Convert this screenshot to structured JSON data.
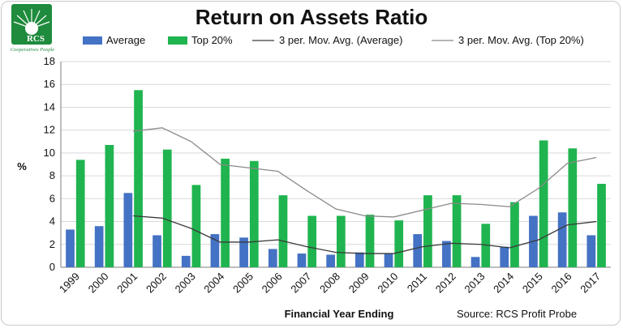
{
  "logo": {
    "text": "RCS",
    "tagline": "Cooperatives People"
  },
  "chart_data": {
    "type": "bar",
    "title": "Return on Assets Ratio",
    "xlabel": "Financial Year Ending",
    "ylabel": "%",
    "source": "Source: RCS Profit Probe",
    "ylim": [
      0,
      18
    ],
    "yticks": [
      "0",
      "2",
      "4",
      "6",
      "8",
      "10",
      "12",
      "14",
      "16",
      "18"
    ],
    "grid": true,
    "legend_position": "top",
    "categories": [
      "1999",
      "2000",
      "2001",
      "2002",
      "2003",
      "2004",
      "2005",
      "2006",
      "2007",
      "2008",
      "2009",
      "2010",
      "2011",
      "2012",
      "2013",
      "2014",
      "2015",
      "2016",
      "2017"
    ],
    "series": [
      {
        "name": "Average",
        "kind": "bar",
        "color": "#4472c4",
        "values": [
          3.3,
          3.6,
          6.5,
          2.8,
          1.0,
          2.9,
          2.6,
          1.6,
          1.2,
          1.1,
          1.3,
          1.2,
          2.9,
          2.3,
          0.9,
          1.8,
          4.5,
          4.8,
          2.8
        ]
      },
      {
        "name": "Top 20%",
        "kind": "bar",
        "color": "#1fb44f",
        "values": [
          9.4,
          10.7,
          15.5,
          10.3,
          7.2,
          9.5,
          9.3,
          6.3,
          4.5,
          4.5,
          4.6,
          4.1,
          6.3,
          6.3,
          3.8,
          5.7,
          11.1,
          10.4,
          7.3
        ]
      },
      {
        "name": "3 per. Mov. Avg. (Average)",
        "kind": "line",
        "color": "#3a3a3a",
        "values": [
          null,
          null,
          4.5,
          4.3,
          3.4,
          2.2,
          2.2,
          2.4,
          1.8,
          1.3,
          1.2,
          1.2,
          1.8,
          2.1,
          2.0,
          1.7,
          2.4,
          3.7,
          4.0
        ]
      },
      {
        "name": "3 per. Mov. Avg. (Top 20%)",
        "kind": "line",
        "color": "#8a8a8a",
        "values": [
          null,
          null,
          11.9,
          12.2,
          11.0,
          9.0,
          8.7,
          8.4,
          6.7,
          5.1,
          4.5,
          4.4,
          5.0,
          5.6,
          5.5,
          5.3,
          6.9,
          9.1,
          9.6
        ]
      }
    ]
  }
}
